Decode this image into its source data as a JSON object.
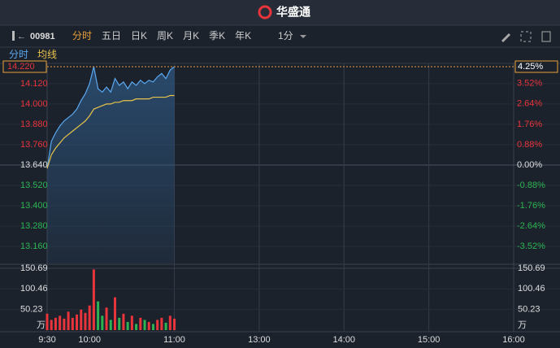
{
  "header": {
    "brand": "华盛通"
  },
  "toolbar": {
    "code": "00981",
    "tabs": [
      "分时",
      "五日",
      "日K",
      "周K",
      "月K",
      "季K",
      "年K"
    ],
    "interval": "1分"
  },
  "legend": {
    "items": [
      "分时",
      "均线"
    ]
  },
  "chart_data": {
    "type": "intraday",
    "x": [
      0,
      3,
      6,
      9,
      12,
      15,
      18,
      21,
      24,
      27,
      30,
      33,
      36,
      39,
      42,
      45,
      48,
      51,
      54,
      57,
      60,
      63,
      66,
      69,
      72,
      75,
      78,
      81,
      84,
      87,
      90
    ],
    "xlim": [
      0,
      330
    ],
    "xticks": [
      {
        "value": 0,
        "label": "9:30"
      },
      {
        "value": 30,
        "label": "10:00"
      },
      {
        "value": 90,
        "label": "11:00"
      },
      {
        "value": 150,
        "label": "13:00"
      },
      {
        "value": 210,
        "label": "14:00"
      },
      {
        "value": 270,
        "label": "15:00"
      },
      {
        "value": 330,
        "label": "16:00"
      }
    ],
    "series": [
      {
        "name": "分时",
        "color": "#5aa8f0",
        "values": [
          13.62,
          13.78,
          13.83,
          13.87,
          13.9,
          13.92,
          13.94,
          13.97,
          14.02,
          14.06,
          14.12,
          14.22,
          14.09,
          14.07,
          14.1,
          14.07,
          14.15,
          14.11,
          14.13,
          14.09,
          14.13,
          14.11,
          14.14,
          14.12,
          14.14,
          14.13,
          14.16,
          14.18,
          14.15,
          14.2,
          14.22
        ]
      },
      {
        "name": "均线",
        "color": "#e8c24a",
        "values": [
          13.62,
          13.7,
          13.74,
          13.77,
          13.8,
          13.82,
          13.84,
          13.86,
          13.88,
          13.9,
          13.93,
          13.97,
          13.98,
          13.99,
          14.0,
          14.0,
          14.01,
          14.01,
          14.02,
          14.02,
          14.02,
          14.03,
          14.03,
          14.03,
          14.03,
          14.04,
          14.04,
          14.04,
          14.04,
          14.05,
          14.05
        ]
      }
    ],
    "ylim": [
      13.06,
      14.22
    ],
    "yticks": [
      {
        "value": 14.12,
        "label": "14.120"
      },
      {
        "value": 14.0,
        "label": "14.000"
      },
      {
        "value": 13.88,
        "label": "13.880"
      },
      {
        "value": 13.76,
        "label": "13.760"
      },
      {
        "value": 13.64,
        "label": "13.640"
      },
      {
        "value": 13.52,
        "label": "13.520"
      },
      {
        "value": 13.4,
        "label": "13.400"
      },
      {
        "value": 13.28,
        "label": "13.280"
      },
      {
        "value": 13.16,
        "label": "13.160"
      }
    ],
    "y2lim": [
      -4.25,
      4.25
    ],
    "y2ticks": [
      {
        "value": 3.52,
        "label": "3.52%"
      },
      {
        "value": 2.64,
        "label": "2.64%"
      },
      {
        "value": 1.76,
        "label": "1.76%"
      },
      {
        "value": 0.88,
        "label": "0.88%"
      },
      {
        "value": 0,
        "label": "0.00%"
      },
      {
        "value": -0.88,
        "label": "-0.88%"
      },
      {
        "value": -1.76,
        "label": "-1.76%"
      },
      {
        "value": -2.64,
        "label": "-2.64%"
      },
      {
        "value": -3.52,
        "label": "-3.52%"
      }
    ],
    "last_price": {
      "value": 14.22,
      "label": "14.220"
    },
    "last_change": {
      "value": 4.25,
      "label": "4.25%"
    },
    "volume": {
      "values": [
        40,
        25,
        30,
        35,
        28,
        45,
        30,
        38,
        50,
        42,
        60,
        148,
        70,
        35,
        55,
        25,
        80,
        30,
        40,
        20,
        35,
        15,
        30,
        25,
        20,
        15,
        25,
        30,
        18,
        35,
        28
      ],
      "ylim": [
        0,
        150.69
      ],
      "yticks": [
        150.69,
        100.46,
        50.23
      ],
      "unit": "万",
      "up_color": "#e8343a",
      "down_color": "#2bb552"
    }
  }
}
